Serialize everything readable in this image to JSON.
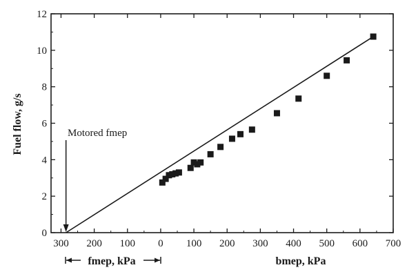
{
  "chart_data": {
    "type": "scatter",
    "title": "",
    "xlabel": "bmep, kPa",
    "xlabel_negative": "fmep, kPa",
    "ylabel": "Fuel flow, g/s",
    "xlim": [
      -330,
      700
    ],
    "ylim": [
      0,
      12
    ],
    "x_tick_values": [
      -300,
      -200,
      -100,
      0,
      100,
      200,
      300,
      400,
      500,
      600,
      700
    ],
    "x_tick_labels": [
      "300",
      "200",
      "100",
      "0",
      "100",
      "200",
      "300",
      "400",
      "500",
      "600",
      "700"
    ],
    "y_ticks": [
      "0",
      "2",
      "4",
      "6",
      "8",
      "10",
      "12"
    ],
    "grid": false,
    "annotation": {
      "text": "Motored fmep",
      "x": -285,
      "y": 0
    },
    "fit_line": {
      "x": [
        -285,
        640
      ],
      "y": [
        0,
        10.75
      ]
    },
    "points": {
      "x": [
        5,
        15,
        25,
        35,
        45,
        55,
        90,
        100,
        110,
        120,
        150,
        180,
        215,
        240,
        275,
        350,
        415,
        500,
        560,
        640
      ],
      "y": [
        2.75,
        2.95,
        3.15,
        3.2,
        3.25,
        3.3,
        3.55,
        3.85,
        3.75,
        3.85,
        4.3,
        4.7,
        5.15,
        5.4,
        5.65,
        6.55,
        7.35,
        8.6,
        9.45,
        10.75
      ]
    }
  }
}
